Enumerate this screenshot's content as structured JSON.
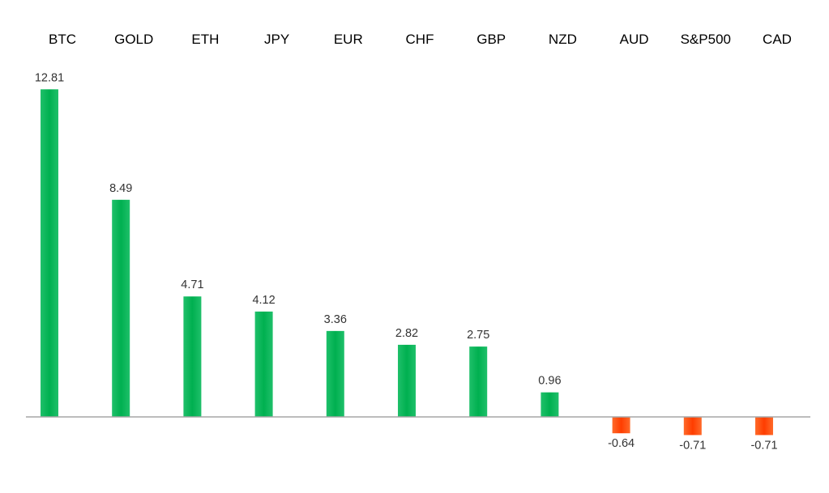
{
  "chart_data": {
    "type": "bar",
    "title": "",
    "xlabel": "",
    "ylabel": "",
    "categories": [
      "BTC",
      "GOLD",
      "ETH",
      "JPY",
      "EUR",
      "CHF",
      "GBP",
      "NZD",
      "AUD",
      "S&P500",
      "CAD"
    ],
    "values": [
      12.81,
      8.49,
      4.71,
      4.12,
      3.36,
      2.82,
      2.75,
      0.96,
      -0.64,
      -0.71,
      -0.71
    ],
    "value_labels": [
      "12.81",
      "8.49",
      "4.71",
      "4.12",
      "3.36",
      "2.82",
      "2.75",
      "0.96",
      "-0.64",
      "-0.71",
      "-0.71"
    ],
    "ylim": [
      -0.71,
      12.81
    ],
    "grid": false,
    "legend": "none",
    "category_labels_position": "top",
    "colors": {
      "positive": "#00b050",
      "negative": "#ff4500",
      "axis": "#a6a6a6"
    }
  }
}
